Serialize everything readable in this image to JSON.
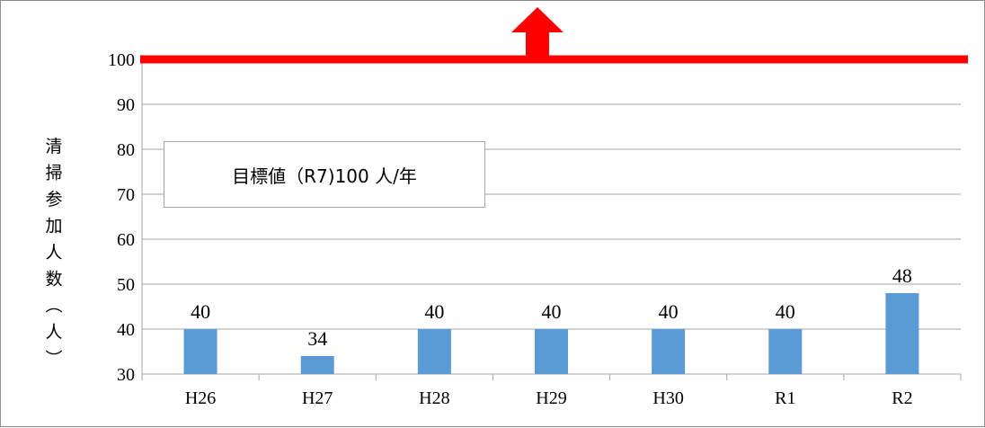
{
  "chart_data": {
    "type": "bar",
    "categories": [
      "H26",
      "H27",
      "H28",
      "H29",
      "H30",
      "R1",
      "R2"
    ],
    "values": [
      40,
      34,
      40,
      40,
      40,
      40,
      48
    ],
    "data_labels": [
      "40",
      "34",
      "40",
      "40",
      "40",
      "40",
      "48"
    ],
    "ylabel": "清掃参加人数（人）",
    "ylim": [
      30,
      100
    ],
    "yticks": [
      30,
      40,
      50,
      60,
      70,
      80,
      90,
      100
    ],
    "grid": "horizontal",
    "bar_color": "#5b9bd5",
    "target": {
      "value": 100,
      "label": "目標値（R7)100 人/年",
      "line_color": "#ff0000",
      "arrow": "up-arrow-icon"
    }
  }
}
